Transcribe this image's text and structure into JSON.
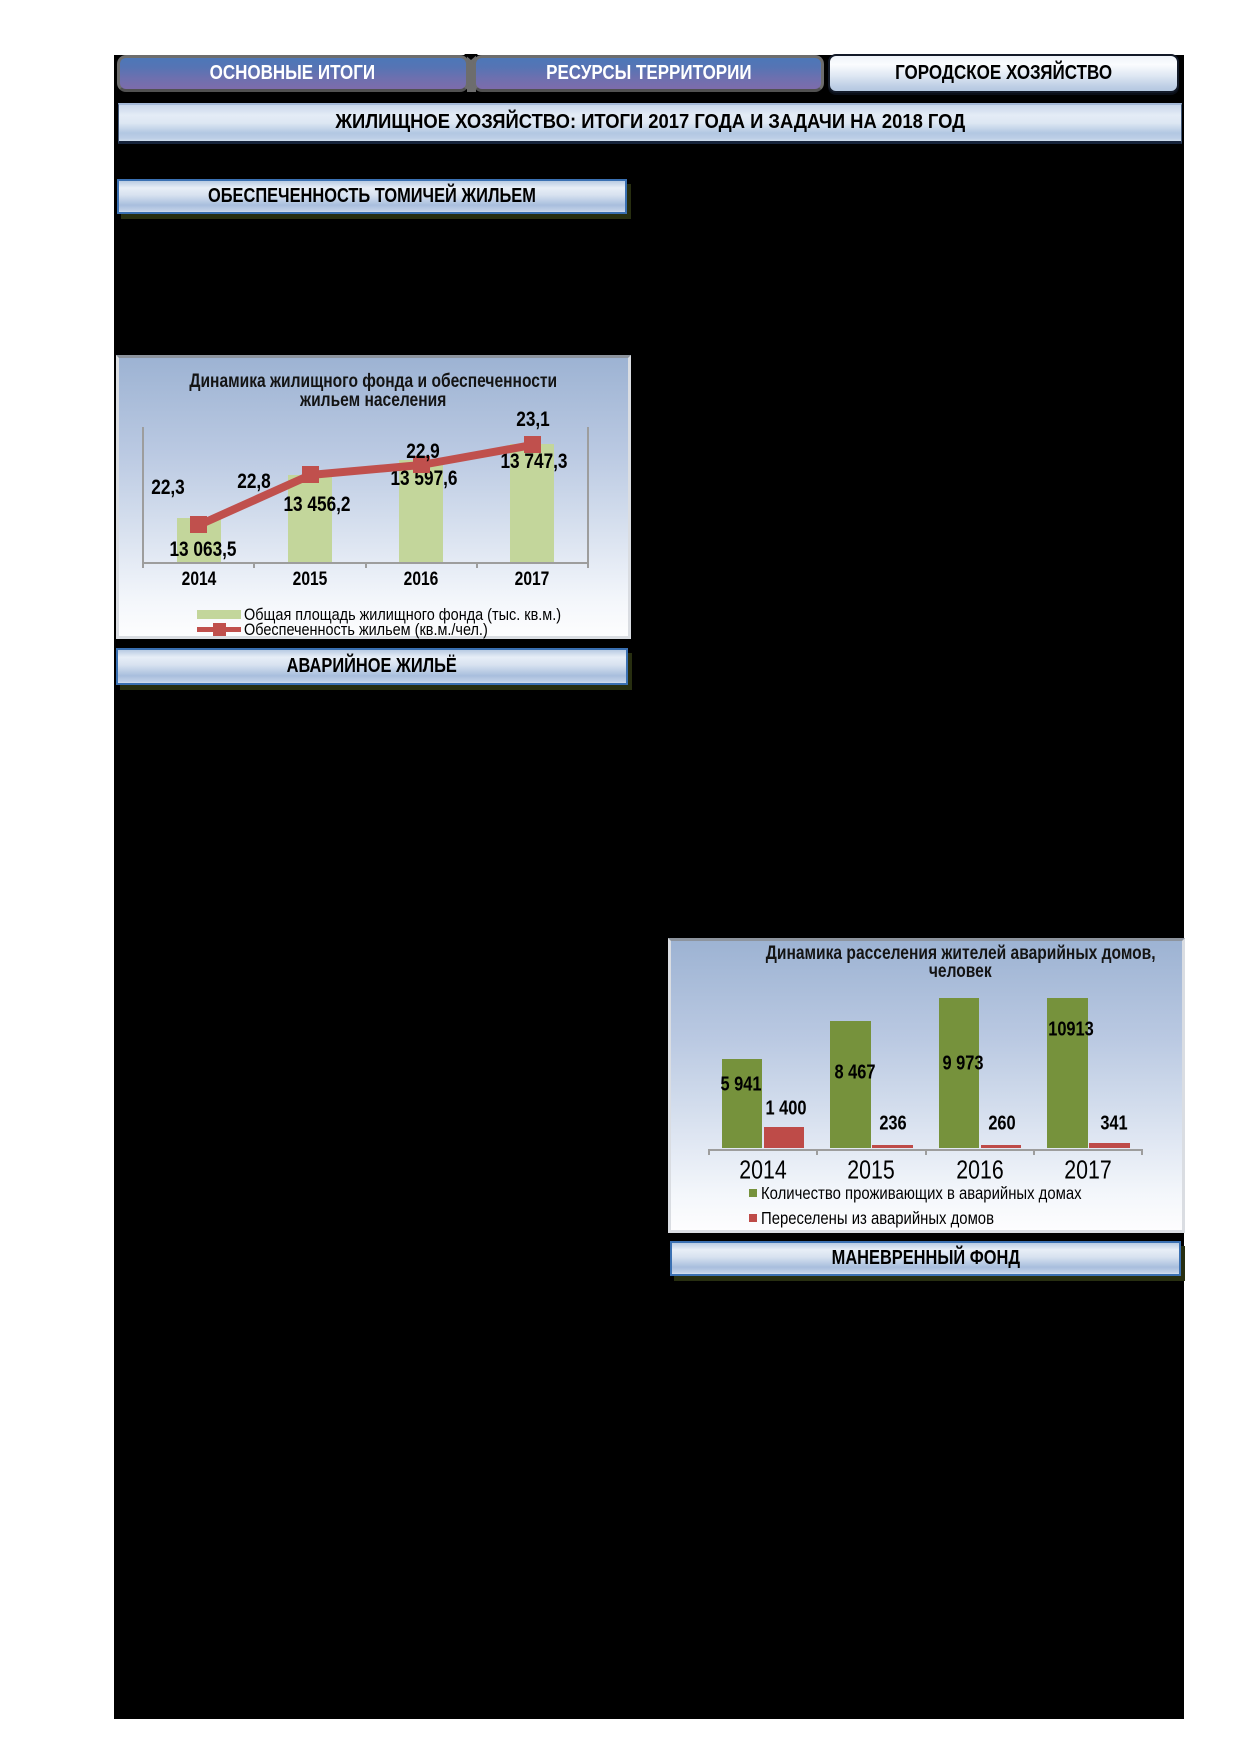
{
  "tabs": [
    {
      "label": "ОСНОВНЫЕ ИТОГИ",
      "active": false
    },
    {
      "label": "РЕСУРСЫ ТЕРРИТОРИИ",
      "active": false
    },
    {
      "label": "ГОРОДСКОЕ ХОЗЯЙСТВО",
      "active": true
    }
  ],
  "title_bar": {
    "text": "ЖИЛИЩНОЕ ХОЗЯЙСТВО: ИТОГИ 2017 ГОДА И ЗАДАЧИ НА 2018 ГОД"
  },
  "section_headers": [
    {
      "text": "ОБЕСПЕЧЕННОСТЬ ТОМИЧЕЙ ЖИЛЬЕМ"
    },
    {
      "text": "АВАРИЙНОЕ ЖИЛЬЁ"
    },
    {
      "text": "МАНЕВРЕННЫЙ ФОНД"
    }
  ],
  "colors": {
    "slide_background": "#000000",
    "tab_gradient_top": "#4c77b8",
    "tab_gradient_bottom": "#7d6cab",
    "bar_light_green": "#c3d69b",
    "bar_dark_green": "#76923c",
    "line_red": "#c0504d",
    "bar_red": "#be4b48",
    "axis_gray": "#9d9d9d"
  },
  "chart_data": [
    {
      "type": "bar",
      "subtype": "bar-line-combo",
      "title": "Динамика жилищного фонда и обеспеченности жильем населения",
      "title_lines": [
        "Динамика жилищного фонда и обеспеченности",
        "жильем населения"
      ],
      "categories": [
        "2014",
        "2015",
        "2016",
        "2017"
      ],
      "series": [
        {
          "name": "Общая площадь жилищного фонда (тыс. кв.м.)",
          "kind": "bar",
          "color": "#c3d69b",
          "values": [
            13063.5,
            13456.2,
            13597.6,
            13747.3
          ],
          "labels": [
            "13 063,5",
            "13 456,2",
            "13 597,6",
            "13 747,3"
          ]
        },
        {
          "name": "Обеспеченность жильем (кв.м./чел.)",
          "kind": "line",
          "color": "#c0504d",
          "values": [
            22.3,
            22.8,
            22.9,
            23.1
          ],
          "labels": [
            "22,3",
            "22,8",
            "22,9",
            "23,1"
          ]
        }
      ],
      "ylim_bar": [
        12654,
        13907
      ],
      "ylim_line": [
        21.93,
        23.28
      ],
      "grid": false,
      "legend_position": "bottom"
    },
    {
      "type": "bar",
      "subtype": "grouped-bars",
      "title": "Динамика расселения жителей аварийных домов, человек",
      "title_lines": [
        "Динамика расселения жителей аварийных домов,",
        "человек"
      ],
      "categories": [
        "2014",
        "2015",
        "2016",
        "2017"
      ],
      "series": [
        {
          "name": "Количество проживающих в аварийных домах",
          "kind": "bar",
          "color": "#76923c",
          "values": [
            5941,
            8467,
            9973,
            10913
          ],
          "labels": [
            "5 941",
            "8 467",
            "9 973",
            "10913"
          ]
        },
        {
          "name": "Переселены из аварийных домов",
          "kind": "bar",
          "color": "#be4b48",
          "values": [
            1400,
            236,
            260,
            341
          ],
          "labels": [
            "1 400",
            "236",
            "260",
            "341"
          ]
        }
      ],
      "ylim": [
        0,
        9970
      ],
      "grid": false,
      "legend_position": "bottom"
    }
  ]
}
